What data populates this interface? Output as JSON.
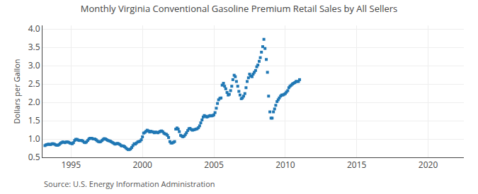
{
  "chart_data": {
    "type": "scatter",
    "title": "Monthly Virginia Conventional Gasoline Premium Retail Sales by All Sellers",
    "ylabel": "Dollars per Gallon",
    "annotations": [
      "Source: U.S. Energy Information Administration"
    ],
    "marker": "square",
    "grid": true,
    "xlim": [
      1993.0,
      2022.5
    ],
    "ylim": [
      0.5,
      4.1
    ],
    "xticks": [
      1995,
      2000,
      2005,
      2010,
      2015,
      2020
    ],
    "yticks": [
      0.5,
      {
        "value": 1.0,
        "label": "1.0"
      },
      1.5,
      {
        "value": 2.0,
        "label": "2.0"
      },
      2.5,
      {
        "value": 3.0,
        "label": "3.0"
      },
      3.5,
      {
        "value": 4.0,
        "label": "4.0"
      }
    ],
    "x": [
      1993.17,
      1993.25,
      1993.33,
      1993.42,
      1993.5,
      1993.58,
      1993.67,
      1993.75,
      1993.83,
      1993.92,
      1994.0,
      1994.08,
      1994.17,
      1994.25,
      1994.33,
      1994.42,
      1994.5,
      1994.58,
      1994.67,
      1994.75,
      1994.83,
      1994.92,
      1995.0,
      1995.08,
      1995.17,
      1995.25,
      1995.33,
      1995.42,
      1995.5,
      1995.58,
      1995.67,
      1995.75,
      1995.83,
      1995.92,
      1996.0,
      1996.08,
      1996.17,
      1996.25,
      1996.33,
      1996.42,
      1996.5,
      1996.58,
      1996.67,
      1996.75,
      1996.83,
      1996.92,
      1997.0,
      1997.08,
      1997.17,
      1997.25,
      1997.33,
      1997.42,
      1997.5,
      1997.58,
      1997.67,
      1997.75,
      1997.83,
      1997.92,
      1998.0,
      1998.08,
      1998.17,
      1998.25,
      1998.33,
      1998.42,
      1998.5,
      1998.58,
      1998.67,
      1998.75,
      1998.83,
      1998.92,
      1999.0,
      1999.08,
      1999.17,
      1999.25,
      1999.33,
      1999.42,
      1999.5,
      1999.58,
      1999.67,
      1999.75,
      1999.83,
      1999.92,
      2000.0,
      2000.08,
      2000.17,
      2000.25,
      2000.33,
      2000.42,
      2000.5,
      2000.58,
      2000.67,
      2000.75,
      2000.83,
      2000.92,
      2001.0,
      2001.08,
      2001.17,
      2001.25,
      2001.33,
      2001.42,
      2001.5,
      2001.58,
      2001.67,
      2001.75,
      2001.83,
      2001.92,
      2002.0,
      2002.08,
      2002.17,
      2002.25,
      2002.33,
      2002.42,
      2002.5,
      2002.58,
      2002.67,
      2002.75,
      2002.83,
      2002.92,
      2003.0,
      2003.08,
      2003.17,
      2003.25,
      2003.33,
      2003.42,
      2003.5,
      2003.58,
      2003.67,
      2003.75,
      2003.83,
      2003.92,
      2004.0,
      2004.08,
      2004.17,
      2004.25,
      2004.33,
      2004.42,
      2004.5,
      2004.58,
      2004.67,
      2004.75,
      2004.83,
      2004.92,
      2005.0,
      2005.08,
      2005.17,
      2005.25,
      2005.33,
      2005.42,
      2005.5,
      2005.58,
      2005.67,
      2005.75,
      2005.83,
      2005.92,
      2006.0,
      2006.08,
      2006.17,
      2006.25,
      2006.33,
      2006.42,
      2006.5,
      2006.58,
      2006.67,
      2006.75,
      2006.83,
      2006.92,
      2007.0,
      2007.08,
      2007.17,
      2007.25,
      2007.33,
      2007.42,
      2007.5,
      2007.58,
      2007.67,
      2007.75,
      2007.83,
      2007.92,
      2008.0,
      2008.08,
      2008.17,
      2008.25,
      2008.33,
      2008.42,
      2008.5,
      2008.58,
      2008.67,
      2008.75,
      2008.83,
      2008.92,
      2009.0,
      2009.08,
      2009.17,
      2009.25,
      2009.33,
      2009.42,
      2009.5,
      2009.58,
      2009.67,
      2009.75,
      2009.83,
      2009.92,
      2010.0,
      2010.08,
      2010.17,
      2010.25,
      2010.33,
      2010.42,
      2010.5,
      2010.58,
      2010.67,
      2010.75,
      2010.83,
      2010.92,
      2011.0
    ],
    "values": [
      0.82,
      0.84,
      0.85,
      0.86,
      0.85,
      0.85,
      0.87,
      0.87,
      0.86,
      0.84,
      0.83,
      0.83,
      0.85,
      0.88,
      0.9,
      0.92,
      0.91,
      0.9,
      0.92,
      0.92,
      0.91,
      0.89,
      0.88,
      0.87,
      0.9,
      0.96,
      0.99,
      0.99,
      0.97,
      0.96,
      0.96,
      0.96,
      0.94,
      0.91,
      0.9,
      0.92,
      0.96,
      1.0,
      1.02,
      1.02,
      1.01,
      1.0,
      1.0,
      0.98,
      0.95,
      0.93,
      0.92,
      0.93,
      0.96,
      0.99,
      1.01,
      1.0,
      0.98,
      0.96,
      0.95,
      0.94,
      0.92,
      0.9,
      0.88,
      0.86,
      0.87,
      0.88,
      0.87,
      0.85,
      0.82,
      0.81,
      0.81,
      0.79,
      0.76,
      0.73,
      0.71,
      0.71,
      0.73,
      0.77,
      0.82,
      0.87,
      0.86,
      0.89,
      0.92,
      0.93,
      0.94,
      0.98,
      1.06,
      1.16,
      1.18,
      1.21,
      1.24,
      1.22,
      1.19,
      1.21,
      1.2,
      1.19,
      1.17,
      1.19,
      1.18,
      1.17,
      1.19,
      1.21,
      1.22,
      1.2,
      1.16,
      1.14,
      1.13,
      1.1,
      1.04,
      0.93,
      0.89,
      0.89,
      0.91,
      0.93,
      1.27,
      1.3,
      1.27,
      1.2,
      1.1,
      1.08,
      1.06,
      1.08,
      1.12,
      1.17,
      1.23,
      1.28,
      1.29,
      1.26,
      1.24,
      1.25,
      1.26,
      1.27,
      1.28,
      1.31,
      1.36,
      1.44,
      1.52,
      1.6,
      1.64,
      1.62,
      1.6,
      1.61,
      1.63,
      1.64,
      1.63,
      1.64,
      1.66,
      1.72,
      1.84,
      1.97,
      2.07,
      2.11,
      2.12,
      2.47,
      2.52,
      2.44,
      2.37,
      2.27,
      2.2,
      2.22,
      2.32,
      2.44,
      2.62,
      2.74,
      2.7,
      2.57,
      2.44,
      2.3,
      2.2,
      2.1,
      2.12,
      2.17,
      2.24,
      2.4,
      2.57,
      2.67,
      2.77,
      2.72,
      2.7,
      2.77,
      2.82,
      2.87,
      2.97,
      3.02,
      3.12,
      3.22,
      3.37,
      3.52,
      3.72,
      3.47,
      3.17,
      2.82,
      2.17,
      1.74,
      1.57,
      1.57,
      1.74,
      1.82,
      1.92,
      2.02,
      2.07,
      2.12,
      2.17,
      2.2,
      2.2,
      2.22,
      2.24,
      2.28,
      2.32,
      2.4,
      2.44,
      2.47,
      2.5,
      2.52,
      2.54,
      2.57,
      2.57,
      2.57,
      2.62
    ]
  }
}
